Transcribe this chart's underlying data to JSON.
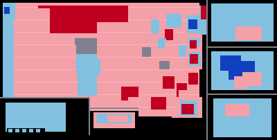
{
  "background": "#000000",
  "colors": {
    "dark_red": "#C00020",
    "light_red": "#F4A0A8",
    "dark_blue": "#1040C0",
    "light_blue": "#82C0E0",
    "gray": "#808090",
    "border": "#E8E8E8",
    "white_border": "#F0F0F0"
  },
  "figsize": [
    4.0,
    2.02
  ],
  "dpi": 100
}
